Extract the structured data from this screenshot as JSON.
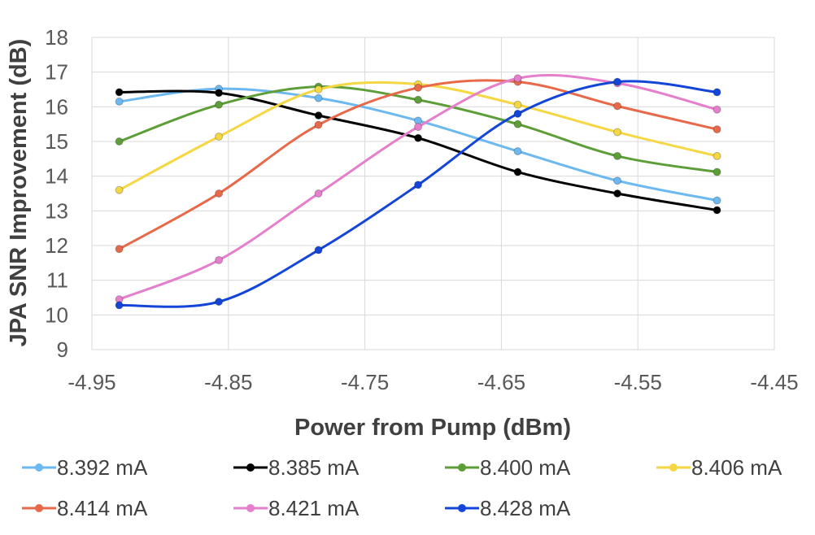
{
  "chart_data": {
    "type": "line",
    "title": "",
    "xlabel": "Power from Pump (dBm)",
    "ylabel": "JPA SNR Improvement (dB)",
    "xlim": [
      -4.95,
      -4.45
    ],
    "ylim": [
      9,
      18
    ],
    "xticks": [
      -4.95,
      -4.85,
      -4.75,
      -4.65,
      -4.55,
      -4.45
    ],
    "xtick_labels": [
      "-4.95",
      "-4.85",
      "-4.75",
      "-4.65",
      "-4.55",
      "-4.45"
    ],
    "yticks": [
      9,
      10,
      11,
      12,
      13,
      14,
      15,
      16,
      17,
      18
    ],
    "ytick_labels": [
      "9",
      "10",
      "11",
      "12",
      "13",
      "14",
      "15",
      "16",
      "17",
      "18"
    ],
    "grid": true,
    "legend_position": "bottom",
    "x": [
      -4.93,
      -4.857,
      -4.784,
      -4.711,
      -4.638,
      -4.565,
      -4.492
    ],
    "series": [
      {
        "name": "8.392 mA",
        "color": "#6cb8f0",
        "values": [
          16.15,
          16.52,
          16.25,
          15.6,
          14.72,
          13.87,
          13.3
        ]
      },
      {
        "name": "8.385 mA",
        "color": "#000000",
        "values": [
          16.42,
          16.4,
          15.75,
          15.1,
          14.12,
          13.5,
          13.02
        ]
      },
      {
        "name": "8.400 mA",
        "color": "#5e9e38",
        "values": [
          15.0,
          16.06,
          16.58,
          16.2,
          15.5,
          14.58,
          14.12
        ]
      },
      {
        "name": "8.406 mA",
        "color": "#f5d643",
        "values": [
          13.6,
          15.14,
          16.5,
          16.65,
          16.06,
          15.27,
          14.58
        ]
      },
      {
        "name": "8.414 mA",
        "color": "#e8694a",
        "values": [
          11.9,
          13.5,
          15.48,
          16.55,
          16.72,
          16.02,
          15.35
        ]
      },
      {
        "name": "8.421 mA",
        "color": "#e57fcb",
        "values": [
          10.45,
          11.58,
          13.5,
          15.42,
          16.82,
          16.68,
          15.92
        ]
      },
      {
        "name": "8.428 mA",
        "color": "#1346d8",
        "values": [
          10.28,
          10.38,
          11.87,
          13.75,
          15.8,
          16.72,
          16.42
        ]
      }
    ]
  }
}
